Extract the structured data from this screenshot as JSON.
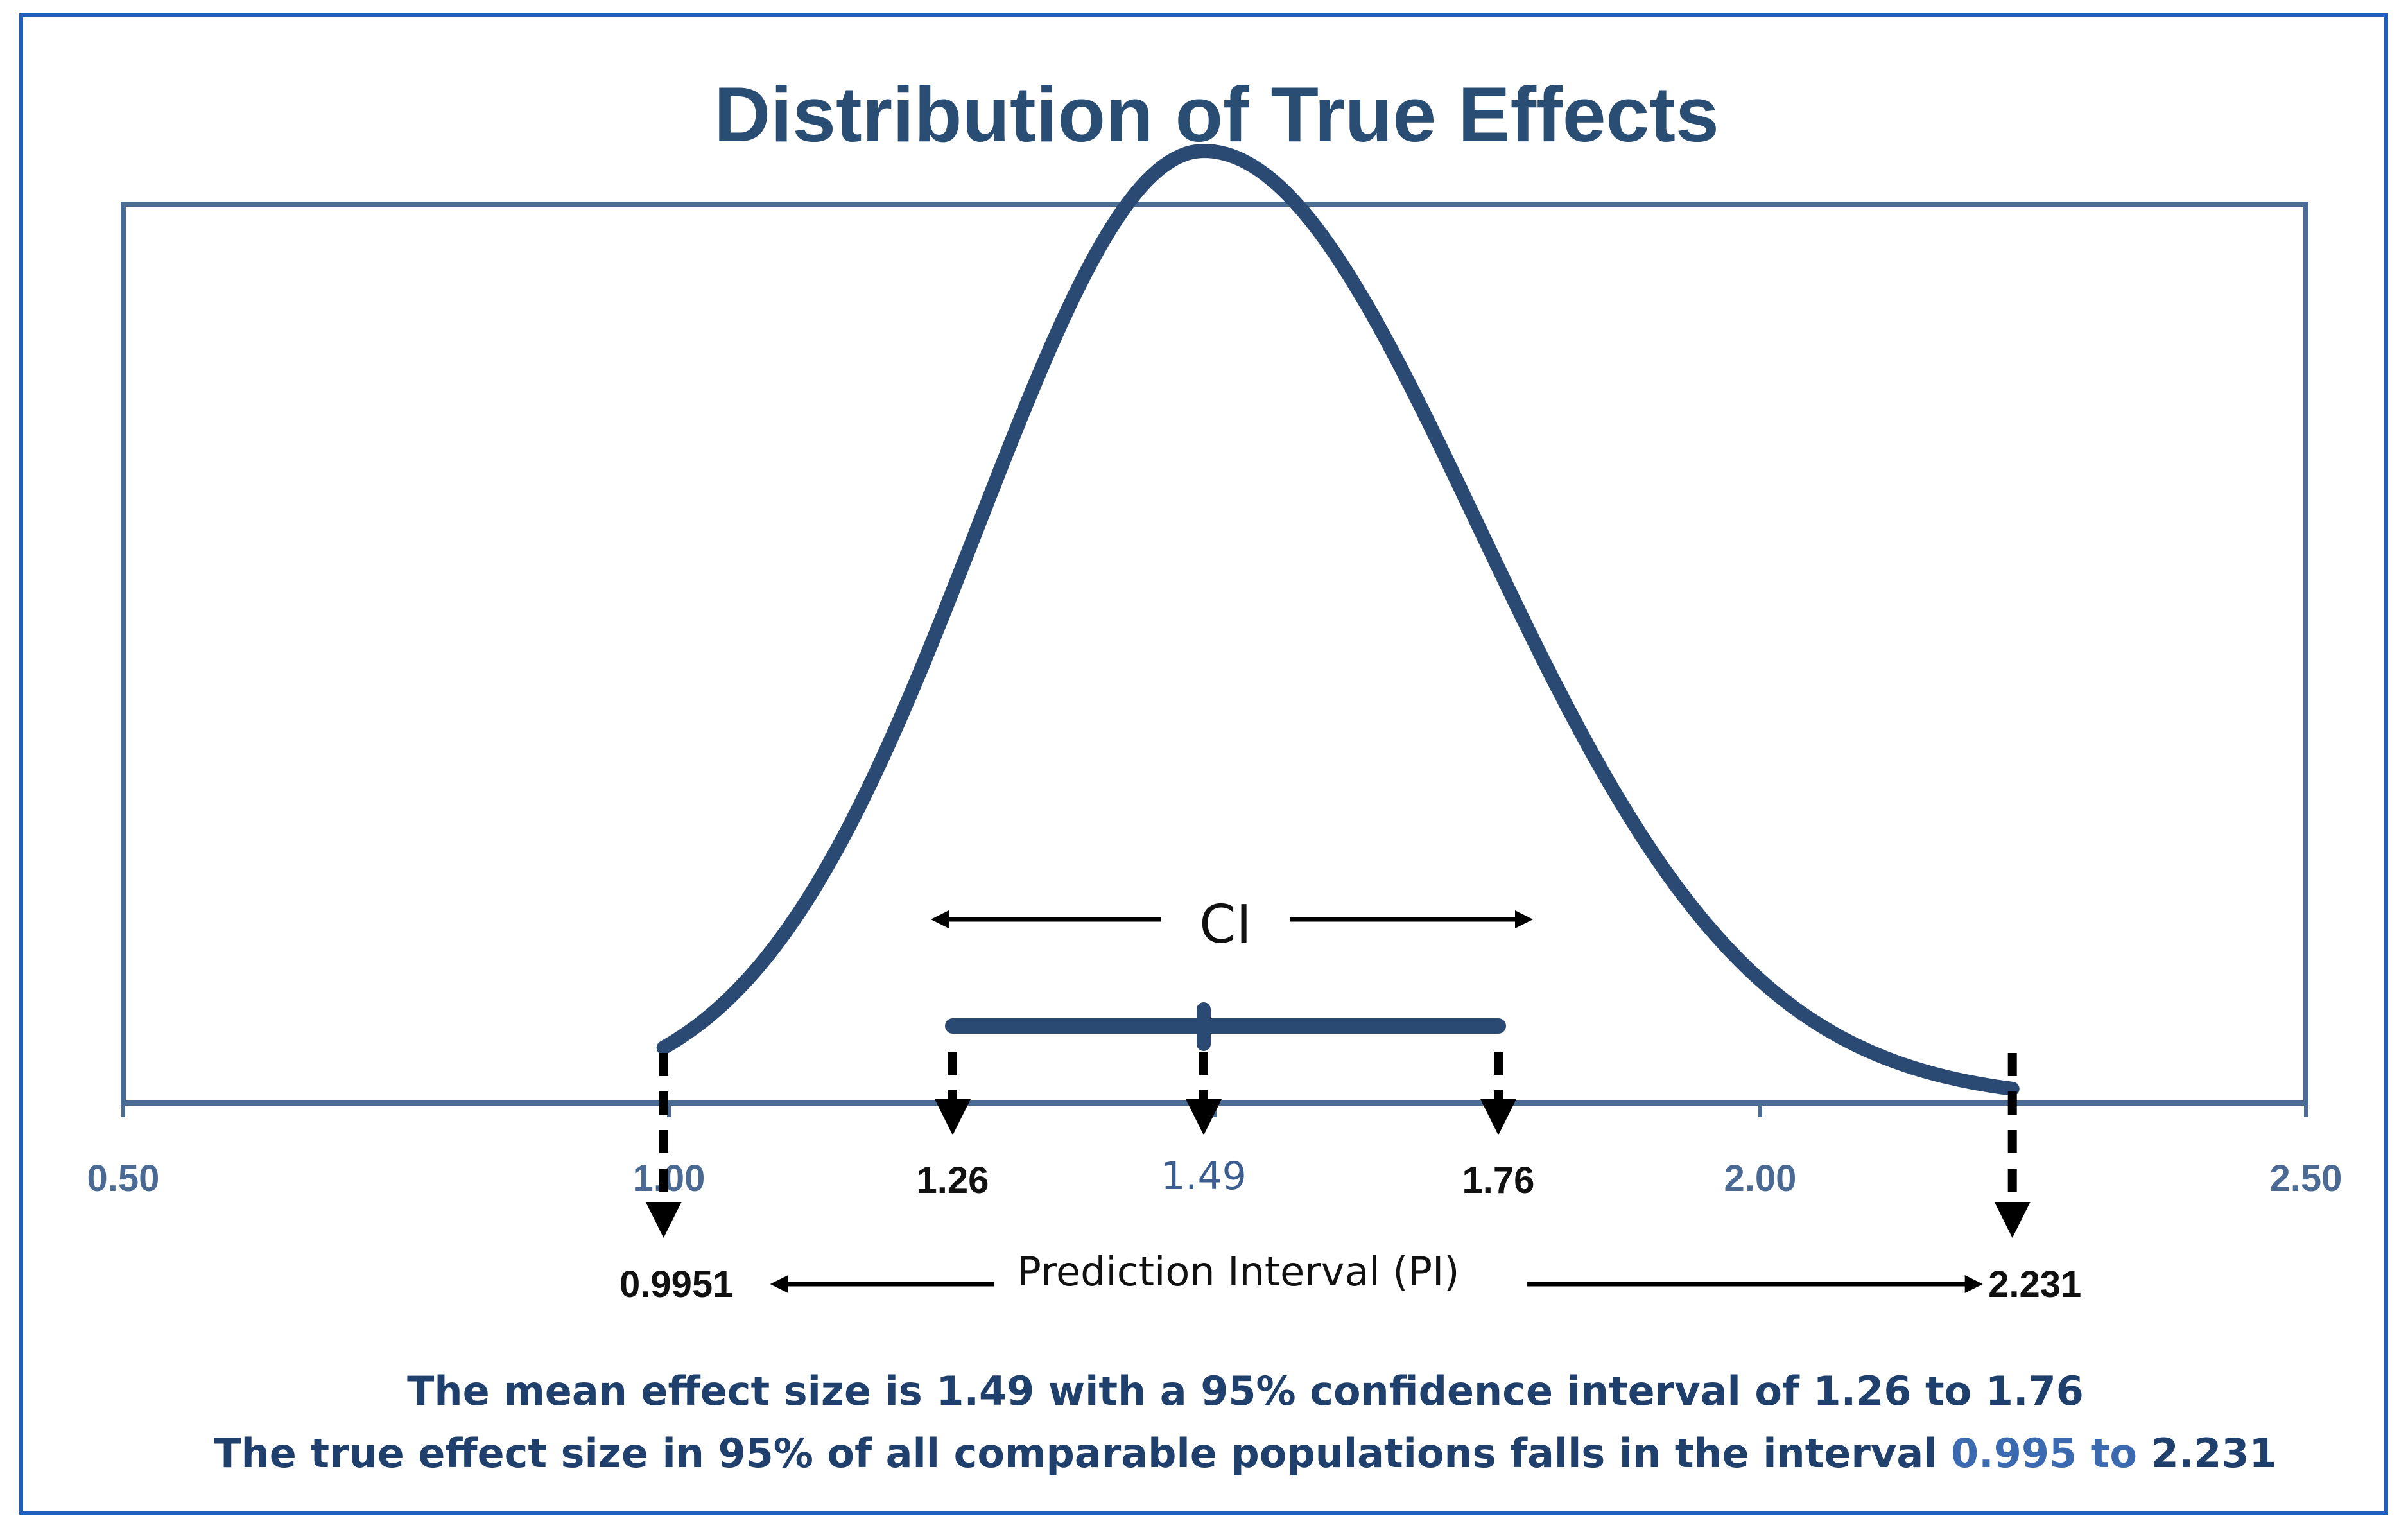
{
  "colors": {
    "frame": "#1f5fbf",
    "curve": "#2a4a73",
    "axis": "#4a6b96",
    "text_dark": "#111111",
    "footnote": "#1f3f6d",
    "highlight": "#3b6ab0"
  },
  "chart_data": {
    "type": "line",
    "title": "Distribution of True Effects",
    "xlim": [
      0.5,
      2.5
    ],
    "x_ticks": [
      0.5,
      1.0,
      1.5,
      2.0,
      2.5
    ],
    "x_tick_labels": [
      "0.50",
      "1.00",
      "",
      "2.00",
      "2.50"
    ],
    "curve": {
      "name": "Distribution of true effects",
      "x_start": 0.9951,
      "x_end": 2.231,
      "mode": 1.49
    },
    "mean": {
      "value": 1.49,
      "label": "1.49"
    },
    "confidence_interval": {
      "lower": 1.26,
      "upper": 1.76,
      "lower_label": "1.26",
      "upper_label": "1.76",
      "label": "CI"
    },
    "prediction_interval": {
      "lower": 0.9951,
      "upper": 2.231,
      "lower_label": "0.9951",
      "upper_label": "2.231",
      "label": "Prediction Interval (PI)"
    }
  },
  "footnote": {
    "line1": "The mean effect size is 1.49 with a 95% confidence interval of 1.26 to 1.76",
    "line2_start": "The true effect size in 95% of all comparable populations falls in the interval ",
    "line2_lower": "0.995",
    "line2_to": " to ",
    "line2_upper": "2.231"
  }
}
